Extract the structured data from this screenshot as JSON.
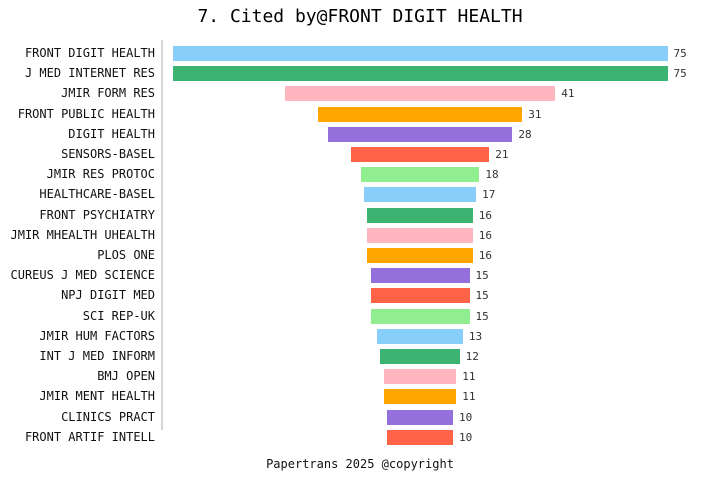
{
  "chart_data": {
    "type": "bar",
    "orientation": "horizontal",
    "bar_alignment": "center-funnel",
    "title": "7. Cited by@FRONT DIGIT HEALTH",
    "xlabel": "",
    "ylabel": "",
    "legend": "none",
    "grid": false,
    "value_labels_shown": true,
    "xlim": [
      0,
      75
    ],
    "categories": [
      "FRONT DIGIT HEALTH",
      "J MED INTERNET RES",
      "JMIR FORM RES",
      "FRONT PUBLIC HEALTH",
      "DIGIT HEALTH",
      "SENSORS-BASEL",
      "JMIR RES PROTOC",
      "HEALTHCARE-BASEL",
      "FRONT PSYCHIATRY",
      "JMIR MHEALTH UHEALTH",
      "PLOS ONE",
      "CUREUS J MED SCIENCE",
      "NPJ DIGIT MED",
      "SCI REP-UK",
      "JMIR HUM FACTORS",
      "INT J MED INFORM",
      "BMJ OPEN",
      "JMIR MENT HEALTH",
      "CLINICS PRACT",
      "FRONT ARTIF INTELL"
    ],
    "values": [
      75,
      75,
      41,
      31,
      28,
      21,
      18,
      17,
      16,
      16,
      16,
      15,
      15,
      15,
      13,
      12,
      11,
      11,
      10,
      10
    ],
    "color_cycle": [
      "#87CEFA",
      "#3CB371",
      "#FFB6C1",
      "#FFA500",
      "#9370DB",
      "#FF6347",
      "#90EE90"
    ],
    "axis_line_color": "#d6d6d6",
    "text_color": "#111111",
    "value_label_color": "#333333"
  },
  "footer": {
    "text": "Papertrans 2025 @copyright"
  }
}
